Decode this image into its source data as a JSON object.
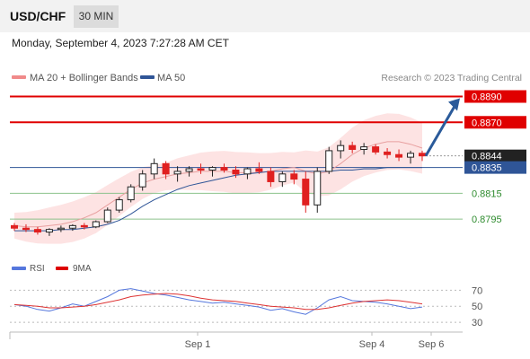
{
  "header": {
    "symbol": "USD/CHF",
    "timeframe": "30 MIN",
    "datetime": "Monday, September 4, 2023 7:27:28 AM CET"
  },
  "legend": {
    "ma20": "MA 20 + Bollinger Bands",
    "ma50": "MA 50",
    "copyright": "Research © 2023 Trading Central",
    "rsi": "RSI",
    "ma9": "9MA"
  },
  "colors": {
    "candle_up": "#222222",
    "candle_down": "#e02020",
    "resistance": "#e00000",
    "support": "#2e8b2e",
    "ma50": "#2f5597",
    "ma20": "#e8a0a0",
    "bollinger": "#fde0e0",
    "current": "#222222",
    "arrow": "#2a5a9a",
    "rsi": "#5577dd",
    "ma9": "#dd3333"
  },
  "chart_data": [
    {
      "type": "candlestick",
      "ylim": [
        0.8768,
        0.8898
      ],
      "x_ticks": [
        "Sep 1",
        "Sep 4",
        "Sep 6"
      ],
      "levels": [
        {
          "value": 0.889,
          "label": "0.8890",
          "kind": "resistance"
        },
        {
          "value": 0.887,
          "label": "0.8870",
          "kind": "resistance"
        },
        {
          "value": 0.8844,
          "label": "0.8844",
          "kind": "current"
        },
        {
          "value": 0.8835,
          "label": "0.8835",
          "kind": "ma50"
        },
        {
          "value": 0.8815,
          "label": "0.8815",
          "kind": "support"
        },
        {
          "value": 0.8795,
          "label": "0.8795",
          "kind": "support"
        }
      ],
      "series": [
        {
          "name": "MA 20 + Bollinger Bands",
          "kind": "ma20",
          "values": [
            0.879,
            0.8789,
            0.8789,
            0.879,
            0.8791,
            0.8793,
            0.8796,
            0.88,
            0.8806,
            0.8812,
            0.8818,
            0.8823,
            0.8826,
            0.8828,
            0.883,
            0.8831,
            0.8832,
            0.8832,
            0.8832,
            0.8831,
            0.8831,
            0.8831,
            0.8832,
            0.8834,
            0.8835,
            0.8832,
            0.883,
            0.8832,
            0.8838,
            0.8845,
            0.885,
            0.8853,
            0.8855,
            0.8855,
            0.8853,
            0.885
          ]
        },
        {
          "name": "MA 50",
          "kind": "ma50",
          "values": [
            0.8786,
            0.8786,
            0.8786,
            0.8786,
            0.8787,
            0.8787,
            0.8788,
            0.8789,
            0.8791,
            0.8794,
            0.8799,
            0.8805,
            0.881,
            0.8814,
            0.8818,
            0.8821,
            0.8823,
            0.8825,
            0.8827,
            0.8829,
            0.883,
            0.8831,
            0.8832,
            0.8832,
            0.8832,
            0.8832,
            0.8832,
            0.8832,
            0.8833,
            0.8833,
            0.8834,
            0.8834,
            0.8835,
            0.8835,
            0.8835,
            0.8835
          ]
        }
      ],
      "ohlc": [
        [
          0.879,
          0.8792,
          0.8786,
          0.8788
        ],
        [
          0.8788,
          0.8791,
          0.8785,
          0.8787
        ],
        [
          0.8787,
          0.8789,
          0.8783,
          0.8785
        ],
        [
          0.8785,
          0.8788,
          0.8782,
          0.8787
        ],
        [
          0.8787,
          0.879,
          0.8785,
          0.8788
        ],
        [
          0.8788,
          0.8791,
          0.8786,
          0.879
        ],
        [
          0.879,
          0.8792,
          0.8787,
          0.8789
        ],
        [
          0.8789,
          0.8794,
          0.8788,
          0.8793
        ],
        [
          0.8793,
          0.8804,
          0.8792,
          0.8802
        ],
        [
          0.8802,
          0.8812,
          0.88,
          0.881
        ],
        [
          0.881,
          0.8822,
          0.8808,
          0.882
        ],
        [
          0.882,
          0.8833,
          0.8817,
          0.883
        ],
        [
          0.883,
          0.8842,
          0.8826,
          0.8838
        ],
        [
          0.8838,
          0.884,
          0.8826,
          0.883
        ],
        [
          0.883,
          0.8836,
          0.8824,
          0.8832
        ],
        [
          0.8832,
          0.8836,
          0.8828,
          0.8834
        ],
        [
          0.8834,
          0.8838,
          0.883,
          0.8833
        ],
        [
          0.8833,
          0.8836,
          0.8828,
          0.8835
        ],
        [
          0.8835,
          0.8838,
          0.8831,
          0.8833
        ],
        [
          0.8833,
          0.8836,
          0.8827,
          0.883
        ],
        [
          0.883,
          0.8835,
          0.8826,
          0.8834
        ],
        [
          0.8834,
          0.8839,
          0.883,
          0.8832
        ],
        [
          0.8832,
          0.8835,
          0.882,
          0.8824
        ],
        [
          0.8824,
          0.8832,
          0.882,
          0.883
        ],
        [
          0.883,
          0.8833,
          0.8822,
          0.8826
        ],
        [
          0.8826,
          0.8832,
          0.88,
          0.8806
        ],
        [
          0.8806,
          0.8835,
          0.88,
          0.8832
        ],
        [
          0.8832,
          0.8851,
          0.883,
          0.8848
        ],
        [
          0.8848,
          0.8856,
          0.8842,
          0.8852
        ],
        [
          0.8852,
          0.8855,
          0.8846,
          0.8849
        ],
        [
          0.8849,
          0.8854,
          0.8845,
          0.8851
        ],
        [
          0.8851,
          0.8853,
          0.8845,
          0.8847
        ],
        [
          0.8847,
          0.885,
          0.8842,
          0.8845
        ],
        [
          0.8845,
          0.8849,
          0.884,
          0.8843
        ],
        [
          0.8843,
          0.8848,
          0.8838,
          0.8846
        ],
        [
          0.8846,
          0.8848,
          0.884,
          0.8844
        ]
      ]
    },
    {
      "type": "line",
      "ylim": [
        20,
        85
      ],
      "y_ticks": [
        70,
        50,
        30
      ],
      "series": [
        {
          "name": "RSI",
          "kind": "rsi",
          "values": [
            52,
            50,
            46,
            44,
            48,
            53,
            50,
            56,
            62,
            70,
            72,
            69,
            66,
            64,
            61,
            58,
            56,
            54,
            55,
            53,
            51,
            49,
            45,
            47,
            43,
            40,
            48,
            58,
            62,
            57,
            56,
            55,
            53,
            50,
            47,
            49
          ]
        },
        {
          "name": "9MA",
          "kind": "ma9",
          "values": [
            52,
            51,
            50,
            48,
            48,
            49,
            50,
            52,
            55,
            58,
            62,
            64,
            65,
            66,
            65,
            63,
            60,
            58,
            57,
            56,
            54,
            52,
            50,
            49,
            48,
            46,
            46,
            48,
            51,
            54,
            56,
            57,
            58,
            57,
            55,
            53
          ]
        }
      ]
    }
  ]
}
